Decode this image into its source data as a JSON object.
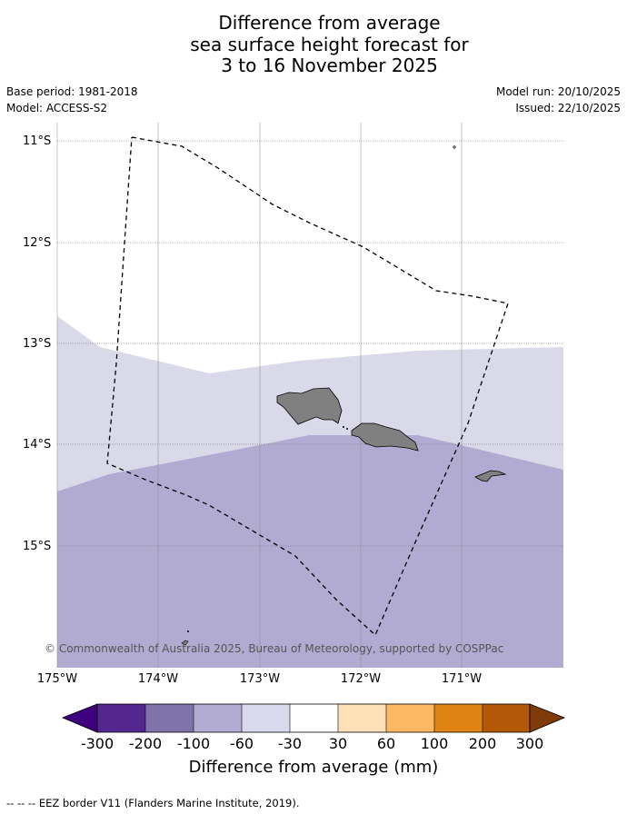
{
  "title": {
    "line1": "Difference from average",
    "line2": "sea surface height forecast for",
    "line3": "3 to 16 November 2025"
  },
  "meta": {
    "base_period": "Base period: 1981-2018",
    "model": "Model: ACCESS-S2",
    "model_run": "Model run: 20/10/2025",
    "issued": "Issued: 22/10/2025"
  },
  "map": {
    "lat_labels": [
      "11°S",
      "12°S",
      "13°S",
      "14°S",
      "15°S"
    ],
    "lon_labels": [
      "175°W",
      "174°W",
      "173°W",
      "172°W",
      "171°W"
    ],
    "copyright": "© Commonwealth of Australia 2025, Bureau of Meteorology, supported by COSPPac",
    "colors": {
      "band_minus_60_to_minus_30": "#d9d9ea",
      "band_minus_100_to_minus_60": "#b1aad1",
      "land": "#808080",
      "eez_border": "#000000"
    }
  },
  "colorbar": {
    "title": "Difference from average (mm)",
    "labels": [
      "-300",
      "-200",
      "-100",
      "-60",
      "-30",
      "30",
      "60",
      "100",
      "200",
      "300"
    ],
    "colors": [
      "#3f007d",
      "#54278f",
      "#8073ac",
      "#b2abd2",
      "#d8daeb",
      "#ffffff",
      "#fee0b6",
      "#fdb863",
      "#e08214",
      "#b35806",
      "#7f3b08"
    ]
  },
  "footnote": "--  --  -- EEZ border V11 (Flanders Marine Institute, 2019)."
}
